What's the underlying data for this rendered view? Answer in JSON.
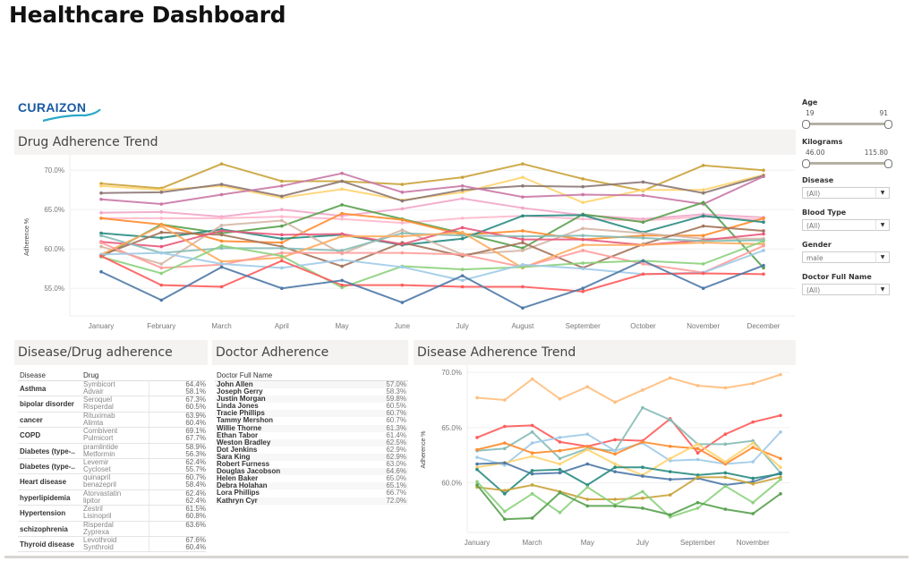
{
  "page": {
    "title": "Healthcare Dashboard",
    "logo_text": "CURAIZON"
  },
  "filters": {
    "age": {
      "label": "Age",
      "min": "19",
      "max": "91"
    },
    "kilograms": {
      "label": "Kilograms",
      "min": "46.00",
      "max": "115.80"
    },
    "disease": {
      "label": "Disease",
      "value": "(All)"
    },
    "blood_type": {
      "label": "Blood Type",
      "value": "(All)"
    },
    "gender": {
      "label": "Gender",
      "value": "male"
    },
    "doctor": {
      "label": "Doctor Full Name",
      "value": "(All)"
    }
  },
  "drug_trend": {
    "title": "Drug Adherence Trend"
  },
  "disease_drug": {
    "title": "Disease/Drug adherence",
    "headers": {
      "disease": "Disease",
      "drug": "Drug"
    },
    "rows": [
      {
        "disease": "Asthma",
        "drugs": [
          {
            "name": "Symbicort",
            "pct": "64.4%"
          },
          {
            "name": "Advair",
            "pct": "58.1%"
          }
        ]
      },
      {
        "disease": "bipolar disorder",
        "drugs": [
          {
            "name": "Seroquel",
            "pct": "67.3%"
          },
          {
            "name": "Risperdal",
            "pct": "60.5%"
          }
        ]
      },
      {
        "disease": "cancer",
        "drugs": [
          {
            "name": "Rituximab",
            "pct": "63.9%"
          },
          {
            "name": "Alimta",
            "pct": "60.4%"
          }
        ]
      },
      {
        "disease": "COPD",
        "drugs": [
          {
            "name": "Combivent",
            "pct": "69.1%"
          },
          {
            "name": "Pulmicort",
            "pct": "67.7%"
          }
        ]
      },
      {
        "disease": "Diabetes (type-..",
        "drugs": [
          {
            "name": "pramlintide",
            "pct": "58.9%"
          },
          {
            "name": "Metformin",
            "pct": "56.3%"
          }
        ]
      },
      {
        "disease": "Diabetes (type-..",
        "drugs": [
          {
            "name": "Levemir",
            "pct": "62.4%"
          },
          {
            "name": "Cycloset",
            "pct": "55.7%"
          }
        ]
      },
      {
        "disease": "Heart disease",
        "drugs": [
          {
            "name": "quinapril",
            "pct": "60.7%"
          },
          {
            "name": "benazepril",
            "pct": "58.4%"
          }
        ]
      },
      {
        "disease": "hyperlipidemia",
        "drugs": [
          {
            "name": "Atorvastatin",
            "pct": "62.4%"
          },
          {
            "name": "lipitor",
            "pct": "62.4%"
          }
        ]
      },
      {
        "disease": "Hypertension",
        "drugs": [
          {
            "name": "Zestril",
            "pct": "61.5%"
          },
          {
            "name": "Lisinopril",
            "pct": "60.8%"
          }
        ]
      },
      {
        "disease": "schizophrenia",
        "drugs": [
          {
            "name": "Risperdal",
            "pct": "63.6%"
          },
          {
            "name": "Zyprexa",
            "pct": ""
          }
        ]
      },
      {
        "disease": "Thyroid disease",
        "drugs": [
          {
            "name": "Levothroid",
            "pct": "67.6%"
          },
          {
            "name": "Synthroid",
            "pct": "60.4%"
          }
        ]
      }
    ]
  },
  "doctor_adherence": {
    "title": "Doctor Adherence",
    "header": "Doctor Full Name",
    "rows": [
      {
        "name": "John Allen",
        "pct": "57.0%"
      },
      {
        "name": "Joseph Gerry",
        "pct": "58.3%"
      },
      {
        "name": "Justin Morgan",
        "pct": "59.8%"
      },
      {
        "name": "Linda Jones",
        "pct": "60.5%"
      },
      {
        "name": "Tracie Phillips",
        "pct": "60.7%"
      },
      {
        "name": "Tammy Mershon",
        "pct": "60.7%"
      },
      {
        "name": "Willie Thorne",
        "pct": "61.3%"
      },
      {
        "name": "Ethan Tabor",
        "pct": "61.4%"
      },
      {
        "name": "Weston Bradley",
        "pct": "62.5%"
      },
      {
        "name": "Dot Jenkins",
        "pct": "62.9%"
      },
      {
        "name": "Sara King",
        "pct": "62.9%"
      },
      {
        "name": "Robert Furness",
        "pct": "63.0%"
      },
      {
        "name": "Douglas Jacobson",
        "pct": "64.6%"
      },
      {
        "name": "Helen Baker",
        "pct": "65.0%"
      },
      {
        "name": "Debra Holahan",
        "pct": "65.1%"
      },
      {
        "name": "Lora Phillips",
        "pct": "66.7%"
      },
      {
        "name": "Kathryn Cyr",
        "pct": "72.0%"
      }
    ]
  },
  "disease_trend": {
    "title": "Disease Adherence Trend"
  },
  "chart_data": [
    {
      "id": "drug-adherence-trend",
      "type": "line",
      "title": "Drug Adherence Trend",
      "xlabel": "",
      "ylabel": "Adherence %",
      "ylim": [
        51.5,
        71.5
      ],
      "yticks": [
        "55.0%",
        "60.0%",
        "65.0%",
        "70.0%"
      ],
      "ytick_values": [
        55,
        60,
        65,
        70
      ],
      "grid": true,
      "legend": "none",
      "x": [
        "January",
        "February",
        "March",
        "April",
        "May",
        "June",
        "July",
        "August",
        "September",
        "October",
        "November",
        "December"
      ],
      "series": [
        {
          "name": "s1",
          "color": "#c9a33a",
          "values": [
            68.3,
            67.7,
            70.8,
            68.6,
            68.6,
            68.2,
            69.1,
            70.8,
            68.9,
            67.4,
            70.6,
            70.0
          ]
        },
        {
          "name": "s2",
          "color": "#ffd36e",
          "values": [
            68.0,
            67.5,
            68.0,
            66.5,
            67.6,
            66.2,
            67.2,
            69.1,
            65.9,
            67.5,
            67.5,
            69.4
          ]
        },
        {
          "name": "s3",
          "color": "#8c7874",
          "values": [
            67.1,
            67.2,
            68.2,
            66.7,
            68.6,
            66.1,
            67.5,
            68.0,
            67.9,
            68.5,
            67.1,
            69.3
          ]
        },
        {
          "name": "s4",
          "color": "#c978a6",
          "values": [
            66.3,
            65.7,
            66.9,
            68.0,
            69.6,
            67.2,
            68.0,
            66.6,
            66.9,
            66.8,
            65.7,
            69.2
          ]
        },
        {
          "name": "s5",
          "color": "#f1a6c8",
          "values": [
            64.6,
            64.7,
            64.1,
            65.0,
            64.2,
            65.1,
            66.4,
            65.2,
            64.3,
            63.8,
            64.4,
            64.0
          ]
        },
        {
          "name": "s6",
          "color": "#ffb8cc",
          "values": [
            63.9,
            63.9,
            63.9,
            64.1,
            63.8,
            63.3,
            63.9,
            64.2,
            63.8,
            63.6,
            64.1,
            63.7
          ]
        },
        {
          "name": "s7",
          "color": "#59a14f",
          "values": [
            59.0,
            63.1,
            62.0,
            62.9,
            65.6,
            63.8,
            62.0,
            60.1,
            64.4,
            63.4,
            65.9,
            57.6
          ]
        },
        {
          "name": "s8",
          "color": "#ff8c2e",
          "values": [
            63.9,
            63.1,
            61.0,
            60.8,
            64.5,
            63.7,
            61.8,
            62.3,
            61.2,
            61.7,
            61.7,
            63.9
          ]
        },
        {
          "name": "s9",
          "color": "#2a8c82",
          "values": [
            62.0,
            61.4,
            62.5,
            61.3,
            61.8,
            60.5,
            61.3,
            64.2,
            64.3,
            62.1,
            64.2,
            63.4
          ]
        },
        {
          "name": "s10",
          "color": "#d5b6a5",
          "values": [
            60.3,
            58.1,
            63.0,
            63.6,
            59.4,
            62.4,
            59.3,
            59.8,
            62.6,
            62.0,
            61.3,
            61.3
          ]
        },
        {
          "name": "s11",
          "color": "#a3735a",
          "values": [
            59.2,
            62.1,
            61.8,
            60.3,
            57.8,
            60.8,
            59.1,
            60.8,
            57.6,
            60.6,
            62.9,
            62.3
          ]
        },
        {
          "name": "s12",
          "color": "#e8597b",
          "values": [
            60.9,
            60.3,
            62.3,
            61.8,
            61.9,
            60.6,
            62.7,
            61.2,
            61.2,
            60.5,
            61.1,
            61.9
          ]
        },
        {
          "name": "s13",
          "color": "#86bcb6",
          "values": [
            61.7,
            59.5,
            60.1,
            60.1,
            59.8,
            62.0,
            61.7,
            61.6,
            61.7,
            61.4,
            61.0,
            61.1
          ]
        },
        {
          "name": "s14",
          "color": "#ffab5c",
          "values": [
            59.3,
            62.9,
            58.4,
            58.9,
            61.6,
            61.6,
            62.1,
            57.6,
            60.5,
            60.5,
            60.8,
            60.6
          ]
        },
        {
          "name": "s15",
          "color": "#ff9d9a",
          "values": [
            60.8,
            57.6,
            58.0,
            59.5,
            59.5,
            59.5,
            59.3,
            57.7,
            59.8,
            58.1,
            57.0,
            60.4
          ]
        },
        {
          "name": "s16",
          "color": "#8cd17d",
          "values": [
            59.0,
            56.9,
            60.4,
            59.1,
            55.1,
            57.8,
            57.4,
            57.7,
            58.2,
            58.5,
            58.1,
            61.0
          ]
        },
        {
          "name": "s17",
          "color": "#a0cbe8",
          "values": [
            59.3,
            59.5,
            58.1,
            57.6,
            58.6,
            57.7,
            56.0,
            58.0,
            57.5,
            56.8,
            57.0,
            59.8
          ]
        },
        {
          "name": "s18",
          "color": "#ff5a5a",
          "values": [
            59.1,
            55.4,
            55.2,
            58.5,
            55.4,
            55.4,
            55.2,
            55.2,
            54.6,
            56.8,
            56.9,
            56.8
          ]
        },
        {
          "name": "s19",
          "color": "#4e79a7",
          "values": [
            57.1,
            53.5,
            57.7,
            55.0,
            56.0,
            53.2,
            56.6,
            52.5,
            55.0,
            58.5,
            55.0,
            57.9
          ]
        }
      ]
    },
    {
      "id": "disease-adherence-trend",
      "type": "line",
      "title": "Disease Adherence Trend",
      "xlabel": "",
      "ylabel": "Adherence %",
      "ylim": [
        55.5,
        70.5
      ],
      "yticks": [
        "60.0%",
        "65.0%",
        "70.0%"
      ],
      "ytick_values": [
        60,
        65,
        70
      ],
      "grid": true,
      "legend": "none",
      "x": [
        "January",
        "February",
        "March",
        "April",
        "May",
        "June",
        "July",
        "August",
        "September",
        "October",
        "November",
        "December"
      ],
      "xtick_labels_shown": [
        "January",
        "March",
        "May",
        "July",
        "September",
        "November"
      ],
      "series": [
        {
          "name": "d1",
          "color": "#ffbe7d",
          "values": [
            67.7,
            67.5,
            69.4,
            67.6,
            68.7,
            67.3,
            68.4,
            69.5,
            68.8,
            68.6,
            69.0,
            69.8
          ]
        },
        {
          "name": "d2",
          "color": "#ff5a5a",
          "values": [
            64.1,
            65.1,
            65.2,
            63.7,
            63.3,
            63.9,
            63.8,
            65.8,
            62.7,
            64.4,
            65.5,
            66.1
          ]
        },
        {
          "name": "d3",
          "color": "#86bcb6",
          "values": [
            62.9,
            63.1,
            64.6,
            62.2,
            63.1,
            62.9,
            66.8,
            65.7,
            63.5,
            63.5,
            63.8,
            60.9
          ]
        },
        {
          "name": "d4",
          "color": "#a0cbe8",
          "values": [
            62.3,
            61.6,
            63.6,
            64.1,
            64.4,
            62.9,
            63.6,
            62.0,
            62.1,
            61.7,
            61.9,
            64.6
          ]
        },
        {
          "name": "d5",
          "color": "#ff8c2e",
          "values": [
            63.0,
            63.6,
            62.7,
            62.9,
            63.3,
            62.6,
            63.7,
            63.3,
            63.1,
            61.7,
            63.2,
            62.2
          ]
        },
        {
          "name": "d6",
          "color": "#ffd36e",
          "values": [
            61.4,
            61.8,
            62.4,
            61.7,
            63.0,
            61.7,
            60.7,
            62.2,
            63.5,
            61.9,
            63.6,
            61.4
          ]
        },
        {
          "name": "d7",
          "color": "#4e79a7",
          "values": [
            61.7,
            61.8,
            60.8,
            60.9,
            61.7,
            61.0,
            60.6,
            60.3,
            60.4,
            59.8,
            60.1,
            60.9
          ]
        },
        {
          "name": "d8",
          "color": "#2a8c82",
          "values": [
            61.2,
            59.0,
            61.1,
            61.2,
            59.8,
            61.4,
            61.4,
            61.0,
            60.7,
            60.9,
            60.4,
            60.8
          ]
        },
        {
          "name": "d9",
          "color": "#c9a33a",
          "values": [
            59.6,
            59.3,
            59.8,
            59.2,
            58.5,
            58.5,
            58.6,
            58.9,
            60.5,
            60.5,
            59.9,
            60.5
          ]
        },
        {
          "name": "d10",
          "color": "#8cd17d",
          "values": [
            60.1,
            57.4,
            59.0,
            57.3,
            59.6,
            58.0,
            59.2,
            56.9,
            57.7,
            59.7,
            58.2,
            60.3
          ]
        },
        {
          "name": "d11",
          "color": "#59a14f",
          "values": [
            59.8,
            56.7,
            56.8,
            59.1,
            57.9,
            57.9,
            57.7,
            57.1,
            58.2,
            57.6,
            57.2,
            59.0
          ]
        }
      ]
    }
  ]
}
